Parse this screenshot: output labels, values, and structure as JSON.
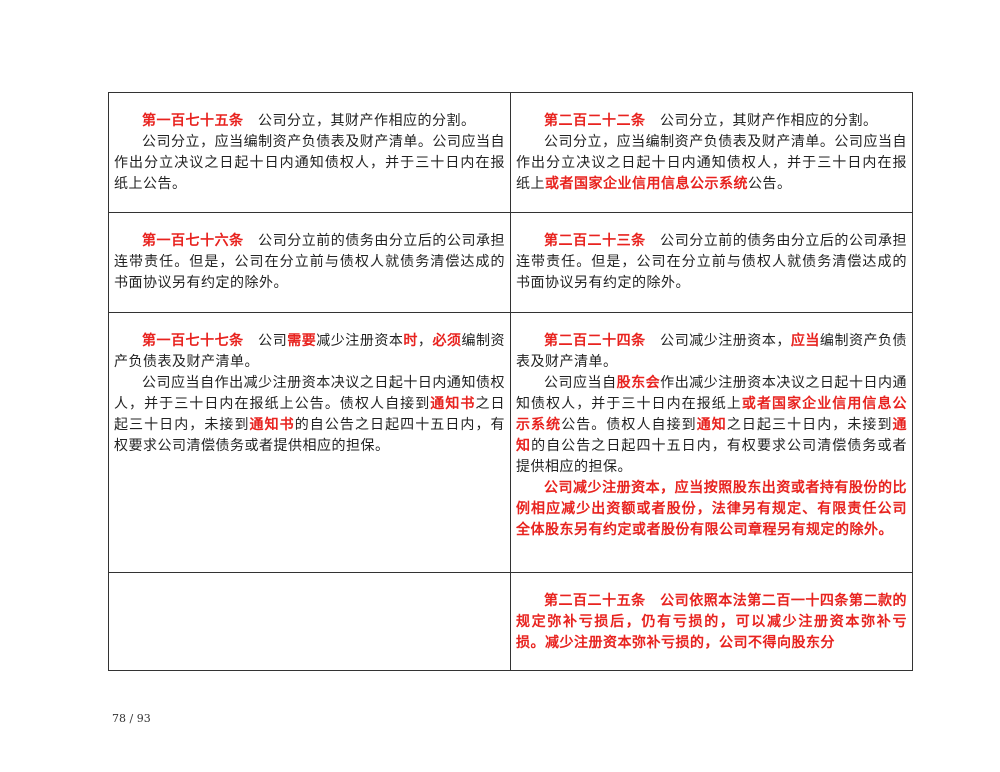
{
  "table": {
    "rows": [
      {
        "cells": [
          [
            [
              {
                "text": "第一百七十五条",
                "color": "#e8231f",
                "bold": true
              },
              {
                "text": "　公司分立，其财产作相应的分割。"
              }
            ],
            [
              {
                "text": "公司分立，应当编制资产负债表及财产清单。公司应当自作出分立决议之日起十日内通知债权人，并于三十日内在报纸上公告。"
              }
            ]
          ],
          [
            [
              {
                "text": "第二百二十二条",
                "color": "#e8231f",
                "bold": true
              },
              {
                "text": "　公司分立，其财产作相应的分割。"
              }
            ],
            [
              {
                "text": "公司分立，应当编制资产负债表及财产清单。公司应当自作出分立决议之日起十日内通知债权人，并于三十日内在报纸上"
              },
              {
                "text": "或者国家企业信用信息公示系统",
                "color": "#e8231f",
                "bold": true
              },
              {
                "text": "公告。"
              }
            ]
          ]
        ]
      },
      {
        "cells": [
          [
            [
              {
                "text": "第一百七十六条",
                "color": "#e8231f",
                "bold": true
              },
              {
                "text": "　公司分立前的债务由分立后的公司承担连带责任。但是，公司在分立前与债权人就债务清偿达成的书面协议另有约定的除外。"
              }
            ]
          ],
          [
            [
              {
                "text": "第二百二十三条",
                "color": "#e8231f",
                "bold": true
              },
              {
                "text": "　公司分立前的债务由分立后的公司承担连带责任。但是，公司在分立前与债权人就债务清偿达成的书面协议另有约定的除外。"
              }
            ]
          ]
        ]
      },
      {
        "cells": [
          [
            [
              {
                "text": "第一百七十七条",
                "color": "#e8231f",
                "bold": true
              },
              {
                "text": "　公司"
              },
              {
                "text": "需要",
                "color": "#e8231f",
                "bold": true
              },
              {
                "text": "减少注册资本"
              },
              {
                "text": "时",
                "color": "#e8231f",
                "bold": true
              },
              {
                "text": "，"
              },
              {
                "text": "必须",
                "color": "#e8231f",
                "bold": true
              },
              {
                "text": "编制资产负债表及财产清单。"
              }
            ],
            [
              {
                "text": "公司应当自作出减少注册资本决议之日起十日内通知债权人，并于三十日内在报纸上公告。债权人自接到"
              },
              {
                "text": "通知书",
                "color": "#e8231f",
                "bold": true
              },
              {
                "text": "之日起三十日内，未接到"
              },
              {
                "text": "通知书",
                "color": "#e8231f",
                "bold": true
              },
              {
                "text": "的自公告之日起四十五日内，有权要求公司清偿债务或者提供相应的担保。"
              }
            ]
          ],
          [
            [
              {
                "text": "第二百二十四条",
                "color": "#e8231f",
                "bold": true
              },
              {
                "text": "　公司减少注册资本，"
              },
              {
                "text": "应当",
                "color": "#e8231f",
                "bold": true
              },
              {
                "text": "编制资产负债表及财产清单。"
              }
            ],
            [
              {
                "text": "公司应当自"
              },
              {
                "text": "股东会",
                "color": "#e8231f",
                "bold": true
              },
              {
                "text": "作出减少注册资本决议之日起十日内通知债权人，并于三十日内在报纸上"
              },
              {
                "text": "或者国家企业信用信息公示系统",
                "color": "#e8231f",
                "bold": true
              },
              {
                "text": "公告。债权人自接到"
              },
              {
                "text": "通知",
                "color": "#e8231f",
                "bold": true
              },
              {
                "text": "之日起三十日内，未接到"
              },
              {
                "text": "通知",
                "color": "#e8231f",
                "bold": true
              },
              {
                "text": "的自公告之日起四十五日内，有权要求公司清偿债务或者提供相应的担保。"
              }
            ],
            [
              {
                "text": "公司减少注册资本，应当按照股东出资或者持有股份的比例相应减少出资额或者股份，法律另有规定、有限责任公司全体股东另有约定或者股份有限公司章程另有规定的除外。",
                "color": "#e8231f",
                "bold": true
              }
            ]
          ]
        ]
      },
      {
        "cells": [
          [],
          [
            [
              {
                "text": "第二百二十五条　公司依照本法第二百一十四条第二款的规定弥补亏损后，仍有亏损的，可以减少注册资本弥补亏损。减少注册资本弥补亏损的，公司不得向股东分",
                "color": "#e8231f",
                "bold": true
              }
            ]
          ]
        ]
      }
    ]
  },
  "footer": {
    "page": "78 / 93"
  }
}
